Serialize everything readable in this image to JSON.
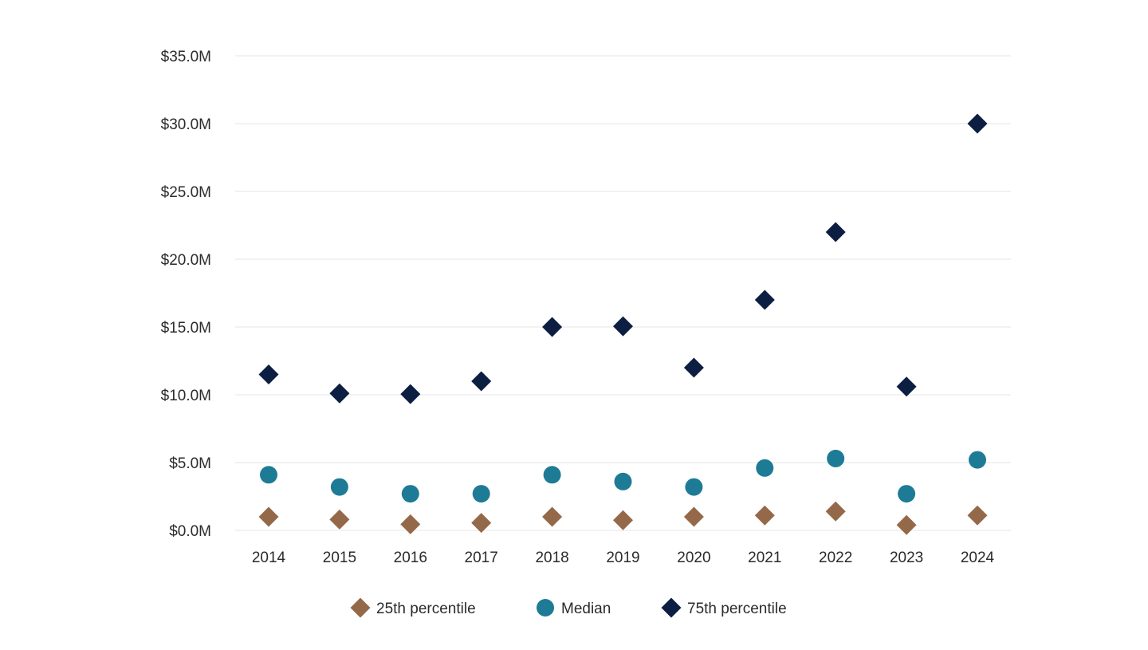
{
  "chart_data": {
    "type": "scatter",
    "title": "",
    "xlabel": "",
    "ylabel": "",
    "categories": [
      "2014",
      "2015",
      "2016",
      "2017",
      "2018",
      "2019",
      "2020",
      "2021",
      "2022",
      "2023",
      "2024"
    ],
    "y_ticks": [
      {
        "value": 0,
        "label": "$0.0M"
      },
      {
        "value": 5,
        "label": "$5.0M"
      },
      {
        "value": 10,
        "label": "$10.0M"
      },
      {
        "value": 15,
        "label": "$15.0M"
      },
      {
        "value": 20,
        "label": "$20.0M"
      },
      {
        "value": 25,
        "label": "$25.0M"
      },
      {
        "value": 30,
        "label": "$30.0M"
      },
      {
        "value": 35,
        "label": "$35.0M"
      }
    ],
    "ylim": [
      0,
      35
    ],
    "grid": "horizontal",
    "legend": "bottom-center",
    "series": [
      {
        "name": "25th percentile",
        "marker": "diamond",
        "color": "#94694a",
        "values": [
          1.0,
          0.8,
          0.45,
          0.55,
          1.0,
          0.75,
          1.0,
          1.1,
          1.4,
          0.4,
          1.1
        ]
      },
      {
        "name": "Median",
        "marker": "circle",
        "color": "#1e7b96",
        "values": [
          4.1,
          3.2,
          2.7,
          2.7,
          4.1,
          3.6,
          3.2,
          4.6,
          5.3,
          2.7,
          5.2
        ]
      },
      {
        "name": "75th percentile",
        "marker": "diamond",
        "color": "#0c1e42",
        "values": [
          11.5,
          10.1,
          10.05,
          11.0,
          15.0,
          15.05,
          12.0,
          17.0,
          22.0,
          10.6,
          30.0
        ]
      }
    ]
  }
}
